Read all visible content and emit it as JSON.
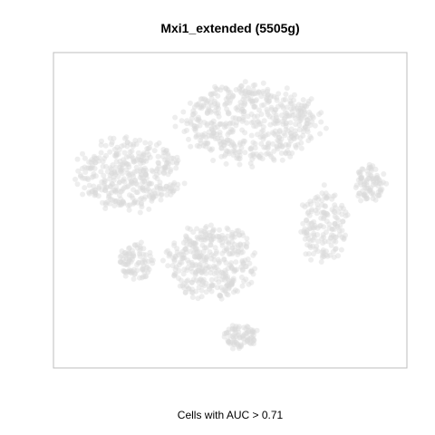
{
  "chart_data": {
    "type": "scatter",
    "title": "Mxi1_extended (5505g)",
    "xlabel": "Cells with AUC > 0.71",
    "ylabel": "",
    "axes_visible": false,
    "grid": false,
    "legend": "none",
    "xlim": [
      0,
      100
    ],
    "ylim": [
      0,
      100
    ],
    "point_color": "#d9d9d9",
    "point_opacity": 0.45,
    "frame_color": "#bdbdbd",
    "clusters": [
      {
        "name": "top-center",
        "cx": 56,
        "cy": 79,
        "rx": 20,
        "ry": 13,
        "n": 520,
        "seed": 11
      },
      {
        "name": "top-left",
        "cx": 20,
        "cy": 62,
        "rx": 15,
        "ry": 12,
        "n": 380,
        "seed": 23
      },
      {
        "name": "middle-center",
        "cx": 44,
        "cy": 33,
        "rx": 13,
        "ry": 12,
        "n": 360,
        "seed": 37
      },
      {
        "name": "right-band",
        "cx": 78,
        "cy": 45,
        "rx": 7,
        "ry": 12,
        "n": 160,
        "seed": 41
      },
      {
        "name": "far-right",
        "cx": 91,
        "cy": 59,
        "rx": 5,
        "ry": 6,
        "n": 90,
        "seed": 53
      },
      {
        "name": "left-small",
        "cx": 22,
        "cy": 33,
        "rx": 5,
        "ry": 6,
        "n": 90,
        "seed": 61
      },
      {
        "name": "bottom-small",
        "cx": 53,
        "cy": 8,
        "rx": 5,
        "ry": 4,
        "n": 80,
        "seed": 71
      }
    ]
  }
}
